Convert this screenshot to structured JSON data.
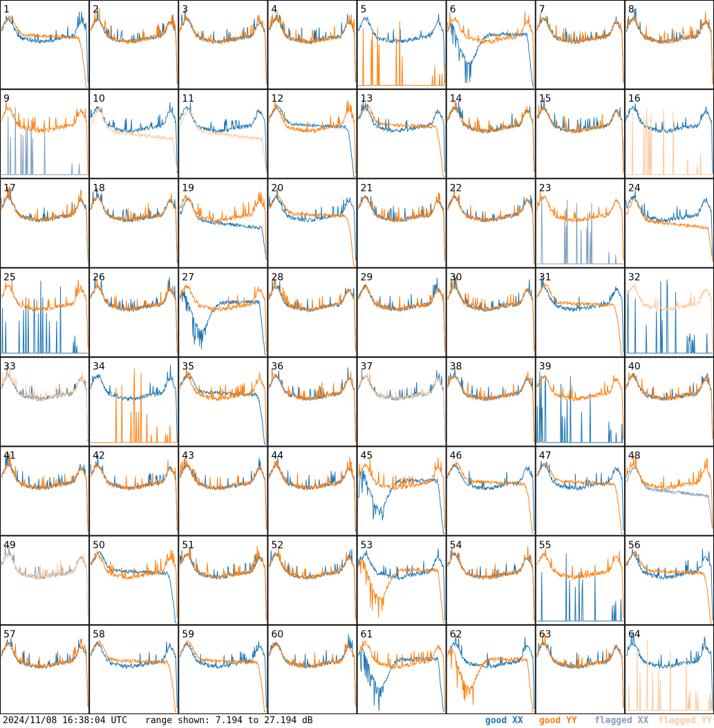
{
  "chart_data": {
    "type": "line",
    "layout": "8x8 grid of small multiples",
    "panels": [
      "1",
      "2",
      "3",
      "4",
      "5",
      "6",
      "7",
      "8",
      "9",
      "10",
      "11",
      "12",
      "13",
      "14",
      "15",
      "16",
      "17",
      "18",
      "19",
      "20",
      "21",
      "22",
      "23",
      "24",
      "25",
      "26",
      "27",
      "28",
      "29",
      "30",
      "31",
      "32",
      "33",
      "34",
      "35",
      "36",
      "37",
      "38",
      "39",
      "40",
      "41",
      "42",
      "43",
      "44",
      "45",
      "46",
      "47",
      "48",
      "49",
      "50",
      "51",
      "52",
      "53",
      "54",
      "55",
      "56",
      "57",
      "58",
      "59",
      "60",
      "61",
      "62",
      "63",
      "64"
    ],
    "ylim": [
      7.194,
      27.194
    ],
    "y_unit": "dB",
    "series": [
      {
        "name": "good XX",
        "color": "#1f77b4"
      },
      {
        "name": "good YY",
        "color": "#ff7f0e"
      },
      {
        "name": "flagged XX",
        "color": "#7f9fbf"
      },
      {
        "name": "flagged YY",
        "color": "#ffc89a"
      }
    ],
    "panel_shapes": {
      "1": {
        "xx": "good",
        "yy": "rolloff",
        "yy_status": "good",
        "xx_status": "good"
      },
      "5": {
        "xx": "good",
        "yy": "spikes",
        "xx_status": "good",
        "yy_status": "good"
      },
      "6": {
        "xx": "dip",
        "yy": "good",
        "xx_status": "good",
        "yy_status": "good"
      },
      "9": {
        "xx": "spikes",
        "yy": "good",
        "xx_status": "flagged",
        "yy_status": "good"
      },
      "10": {
        "xx": "good",
        "yy": "low",
        "xx_status": "good",
        "yy_status": "flagged"
      },
      "11": {
        "xx": "good",
        "yy": "low",
        "xx_status": "good",
        "yy_status": "flagged"
      },
      "12": {
        "xx": "rolloff",
        "yy": "good",
        "xx_status": "good",
        "yy_status": "good"
      },
      "13": {
        "xx": "good",
        "yy": "rolloff",
        "xx_status": "good",
        "yy_status": "good"
      },
      "16": {
        "xx": "good",
        "yy": "spikes",
        "xx_status": "good",
        "yy_status": "flagged"
      },
      "19": {
        "xx": "low",
        "yy": "good",
        "xx_status": "good",
        "yy_status": "good"
      },
      "20": {
        "xx": "good",
        "yy": "rolloff",
        "xx_status": "good",
        "yy_status": "good"
      },
      "23": {
        "xx": "spikes",
        "yy": "good",
        "xx_status": "flagged",
        "yy_status": "good"
      },
      "24": {
        "xx": "good",
        "yy": "low",
        "xx_status": "good",
        "yy_status": "good"
      },
      "25": {
        "xx": "spikes",
        "yy": "good",
        "xx_status": "good",
        "yy_status": "good"
      },
      "27": {
        "xx": "dip",
        "yy": "good",
        "xx_status": "good",
        "yy_status": "good"
      },
      "31": {
        "xx": "good",
        "yy": "rolloff",
        "xx_status": "good",
        "yy_status": "good"
      },
      "32": {
        "xx": "spikes",
        "yy": "good",
        "xx_status": "good",
        "yy_status": "flagged"
      },
      "33": {
        "xx": "good",
        "yy": "good",
        "xx_status": "good",
        "yy_status": "flagged"
      },
      "34": {
        "xx": "good",
        "yy": "spikes",
        "xx_status": "good",
        "yy_status": "good"
      },
      "35": {
        "xx": "rolloff",
        "yy": "good",
        "xx_status": "good",
        "yy_status": "good"
      },
      "37": {
        "xx": "good",
        "yy": "good",
        "xx_status": "good",
        "yy_status": "flagged"
      },
      "39": {
        "xx": "spikes",
        "yy": "good",
        "xx_status": "good",
        "yy_status": "good"
      },
      "45": {
        "xx": "dip",
        "yy": "good",
        "xx_status": "good",
        "yy_status": "good"
      },
      "46": {
        "xx": "good",
        "yy": "rolloff",
        "xx_status": "good",
        "yy_status": "good"
      },
      "47": {
        "xx": "good",
        "yy": "rolloff",
        "xx_status": "good",
        "yy_status": "good"
      },
      "48": {
        "xx": "low",
        "yy": "good",
        "xx_status": "flagged",
        "yy_status": "good"
      },
      "49": {
        "xx": "good",
        "yy": "good",
        "xx_status": "flagged",
        "yy_status": "flagged"
      },
      "50": {
        "xx": "rolloff",
        "yy": "good",
        "xx_status": "good",
        "yy_status": "good"
      },
      "53": {
        "xx": "good",
        "yy": "dip",
        "xx_status": "good",
        "yy_status": "good"
      },
      "55": {
        "xx": "spikes",
        "yy": "good",
        "xx_status": "good",
        "yy_status": "good"
      },
      "56": {
        "xx": "good",
        "yy": "rolloff",
        "xx_status": "good",
        "yy_status": "good"
      },
      "58": {
        "xx": "good",
        "yy": "rolloff",
        "xx_status": "good",
        "yy_status": "good"
      },
      "59": {
        "xx": "good",
        "yy": "rolloff",
        "xx_status": "good",
        "yy_status": "good"
      },
      "61": {
        "xx": "dip",
        "yy": "good",
        "xx_status": "good",
        "yy_status": "good"
      },
      "62": {
        "xx": "good",
        "yy": "dip",
        "xx_status": "good",
        "yy_status": "good"
      },
      "64": {
        "xx": "good",
        "yy": "spikes",
        "xx_status": "good",
        "yy_status": "flagged"
      }
    }
  },
  "footer": {
    "timestamp": "2024/11/08 16:38:04 UTC",
    "range": "range shown: 7.194 to 27.194 dB",
    "legend_good_xx": "good XX",
    "legend_good_yy": "good YY",
    "legend_flagged_xx": "flagged XX",
    "legend_flagged_yy": "flagged YY"
  }
}
